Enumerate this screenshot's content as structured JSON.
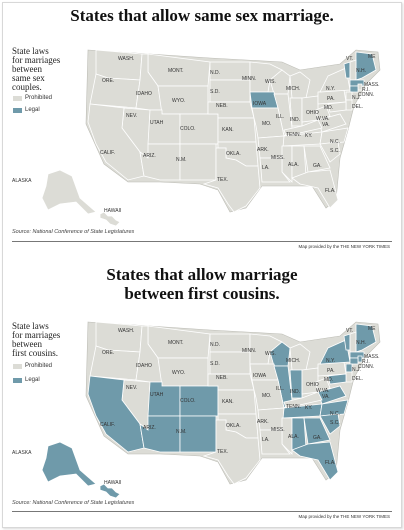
{
  "panel1": {
    "title": "States that allow same sex marriage.",
    "legend_title": "State laws\nfor marriages\nbetween\nsame sex\ncouples.",
    "legend": [
      {
        "label": "Prohibited",
        "color": "#dcdcd6"
      },
      {
        "label": "Legal",
        "color": "#6f9aaa"
      }
    ],
    "states": [
      {
        "name": "WASH.",
        "status": "prohibited"
      },
      {
        "name": "MONT.",
        "status": "prohibited"
      },
      {
        "name": "N.D.",
        "status": "prohibited"
      },
      {
        "name": "ORE.",
        "status": "prohibited"
      },
      {
        "name": "IDAHO",
        "status": "prohibited"
      },
      {
        "name": "WYO.",
        "status": "prohibited"
      },
      {
        "name": "S.D.",
        "status": "prohibited"
      },
      {
        "name": "MINN.",
        "status": "prohibited"
      },
      {
        "name": "WIS.",
        "status": "prohibited"
      },
      {
        "name": "MICH.",
        "status": "prohibited"
      },
      {
        "name": "IOWA",
        "status": "legal"
      },
      {
        "name": "NEV.",
        "status": "prohibited"
      },
      {
        "name": "UTAH",
        "status": "prohibited"
      },
      {
        "name": "COLO.",
        "status": "prohibited"
      },
      {
        "name": "NEB.",
        "status": "prohibited"
      },
      {
        "name": "ILL.",
        "status": "prohibited"
      },
      {
        "name": "IND.",
        "status": "prohibited"
      },
      {
        "name": "OHIO",
        "status": "prohibited"
      },
      {
        "name": "PA.",
        "status": "prohibited"
      },
      {
        "name": "N.Y.",
        "status": "prohibited"
      },
      {
        "name": "VT.",
        "status": "legal"
      },
      {
        "name": "ME",
        "status": "legal"
      },
      {
        "name": "N.H.",
        "status": "prohibited"
      },
      {
        "name": "MASS.",
        "status": "legal"
      },
      {
        "name": "R.I.",
        "status": "prohibited"
      },
      {
        "name": "CONN.",
        "status": "legal"
      },
      {
        "name": "N.J.",
        "status": "prohibited"
      },
      {
        "name": "DEL.",
        "status": "prohibited"
      },
      {
        "name": "MD.",
        "status": "prohibited"
      },
      {
        "name": "W.VA.",
        "status": "prohibited"
      },
      {
        "name": "VA.",
        "status": "prohibited"
      },
      {
        "name": "CALIF.",
        "status": "prohibited"
      },
      {
        "name": "KAN.",
        "status": "prohibited"
      },
      {
        "name": "MO.",
        "status": "prohibited"
      },
      {
        "name": "KY.",
        "status": "prohibited"
      },
      {
        "name": "TENN.",
        "status": "prohibited"
      },
      {
        "name": "N.C.",
        "status": "prohibited"
      },
      {
        "name": "S.C.",
        "status": "prohibited"
      },
      {
        "name": "ARIZ.",
        "status": "prohibited"
      },
      {
        "name": "N.M.",
        "status": "prohibited"
      },
      {
        "name": "OKLA.",
        "status": "prohibited"
      },
      {
        "name": "ARK.",
        "status": "prohibited"
      },
      {
        "name": "MISS.",
        "status": "prohibited"
      },
      {
        "name": "ALA.",
        "status": "prohibited"
      },
      {
        "name": "GA.",
        "status": "prohibited"
      },
      {
        "name": "TEX.",
        "status": "prohibited"
      },
      {
        "name": "LA.",
        "status": "prohibited"
      },
      {
        "name": "FLA.",
        "status": "prohibited"
      },
      {
        "name": "ALASKA",
        "status": "prohibited"
      },
      {
        "name": "HAWAII",
        "status": "prohibited"
      }
    ],
    "source": "Source: National Conference of State Legislatures",
    "credit": "Map provided by the THE NEW YORK TIMES"
  },
  "panel2": {
    "title_line1": "States that allow marriage",
    "title_line2": "between first cousins.",
    "legend_title": "State laws\nfor marriages\nbetween\nfirst cousins.",
    "legend": [
      {
        "label": "Prohibited",
        "color": "#dcdcd6"
      },
      {
        "label": "Legal",
        "color": "#6f9aaa"
      }
    ],
    "states": [
      {
        "name": "WASH.",
        "status": "prohibited"
      },
      {
        "name": "MONT.",
        "status": "prohibited"
      },
      {
        "name": "N.D.",
        "status": "prohibited"
      },
      {
        "name": "ORE.",
        "status": "prohibited"
      },
      {
        "name": "IDAHO",
        "status": "prohibited"
      },
      {
        "name": "WYO.",
        "status": "prohibited"
      },
      {
        "name": "S.D.",
        "status": "prohibited"
      },
      {
        "name": "MINN.",
        "status": "prohibited"
      },
      {
        "name": "WIS.",
        "status": "legal"
      },
      {
        "name": "MICH.",
        "status": "prohibited"
      },
      {
        "name": "IOWA",
        "status": "prohibited"
      },
      {
        "name": "NEV.",
        "status": "prohibited"
      },
      {
        "name": "UTAH",
        "status": "legal"
      },
      {
        "name": "COLO.",
        "status": "legal"
      },
      {
        "name": "NEB.",
        "status": "prohibited"
      },
      {
        "name": "ILL.",
        "status": "legal"
      },
      {
        "name": "IND.",
        "status": "legal"
      },
      {
        "name": "OHIO",
        "status": "prohibited"
      },
      {
        "name": "PA.",
        "status": "prohibited"
      },
      {
        "name": "N.Y.",
        "status": "legal"
      },
      {
        "name": "VT.",
        "status": "legal"
      },
      {
        "name": "ME",
        "status": "legal"
      },
      {
        "name": "N.H.",
        "status": "prohibited"
      },
      {
        "name": "MASS.",
        "status": "legal"
      },
      {
        "name": "R.I.",
        "status": "legal"
      },
      {
        "name": "CONN.",
        "status": "legal"
      },
      {
        "name": "N.J.",
        "status": "legal"
      },
      {
        "name": "DEL.",
        "status": "prohibited"
      },
      {
        "name": "MD.",
        "status": "legal"
      },
      {
        "name": "W.VA.",
        "status": "prohibited"
      },
      {
        "name": "VA.",
        "status": "legal"
      },
      {
        "name": "CALIF.",
        "status": "legal"
      },
      {
        "name": "KAN.",
        "status": "prohibited"
      },
      {
        "name": "MO.",
        "status": "prohibited"
      },
      {
        "name": "KY.",
        "status": "prohibited"
      },
      {
        "name": "TENN.",
        "status": "legal"
      },
      {
        "name": "N.C.",
        "status": "legal"
      },
      {
        "name": "S.C.",
        "status": "legal"
      },
      {
        "name": "ARIZ.",
        "status": "legal"
      },
      {
        "name": "N.M.",
        "status": "legal"
      },
      {
        "name": "OKLA.",
        "status": "prohibited"
      },
      {
        "name": "ARK.",
        "status": "prohibited"
      },
      {
        "name": "MISS.",
        "status": "prohibited"
      },
      {
        "name": "ALA.",
        "status": "legal"
      },
      {
        "name": "GA.",
        "status": "legal"
      },
      {
        "name": "TEX.",
        "status": "prohibited"
      },
      {
        "name": "LA.",
        "status": "prohibited"
      },
      {
        "name": "FLA.",
        "status": "legal"
      },
      {
        "name": "ALASKA",
        "status": "legal"
      },
      {
        "name": "HAWAII",
        "status": "legal"
      }
    ],
    "source": "Source: National Conference of State Legislatures",
    "credit": "Map provided by the THE NEW YORK TIMES"
  },
  "colors": {
    "prohibited": "#dcdcd6",
    "legal": "#6f9aaa",
    "border": "#ffffff",
    "outline": "#bdbdb6"
  }
}
